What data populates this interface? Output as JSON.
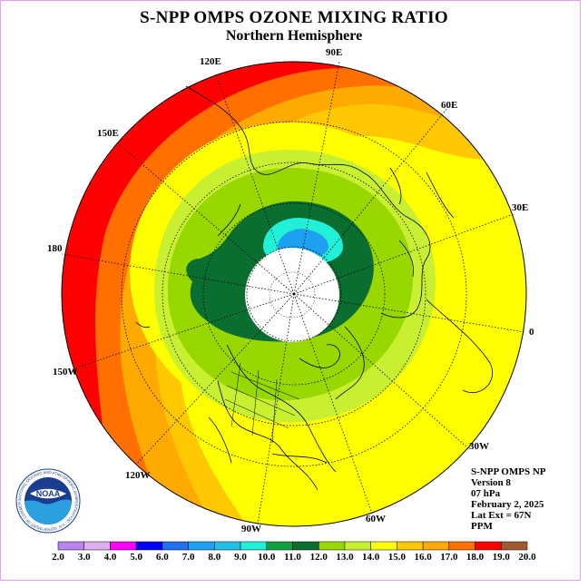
{
  "title": "S-NPP OMPS OZONE MIXING RATIO",
  "subtitle": "Northern Hemisphere",
  "longitudes": [
    "90E",
    "60E",
    "30E",
    "0",
    "30W",
    "60W",
    "90W",
    "120W",
    "150W",
    "180",
    "150E",
    "120E"
  ],
  "info": {
    "instrument": "S-NPP OMPS NP",
    "version": "Version 8",
    "level": "07 hPa",
    "date": "February 2, 2025",
    "lat_ext": "Lat Ext = 67N",
    "units": "PPM"
  },
  "logo": {
    "text": "NOAA",
    "ring_text": "NATIONAL OCEANIC AND ATMOSPHERIC ADMINISTRATION · U.S. DEPARTMENT OF COMMERCE"
  },
  "colorbar": {
    "labels": [
      "2.0",
      "3.0",
      "4.0",
      "5.0",
      "6.0",
      "7.0",
      "8.0",
      "9.0",
      "10.0",
      "11.0",
      "12.0",
      "13.0",
      "14.0",
      "15.0",
      "16.0",
      "17.0",
      "18.0",
      "19.0",
      "20.0"
    ],
    "colors": [
      "#b784f0",
      "#dcb0f0",
      "#ff00ff",
      "#0000ff",
      "#2070f0",
      "#1ea0f0",
      "#20c0e8",
      "#20f0d8",
      "#10a040",
      "#0a6e30",
      "#98d800",
      "#c8f030",
      "#ffff00",
      "#ffc800",
      "#ffaa00",
      "#ff7000",
      "#ff0000",
      "#a05a30"
    ]
  },
  "colors": {
    "frame": "#e8a0e8",
    "no_data": "#ffffff"
  }
}
